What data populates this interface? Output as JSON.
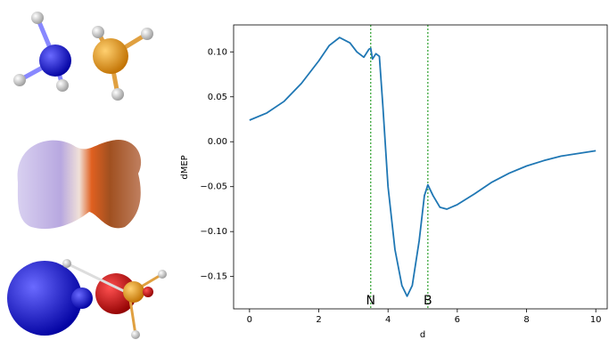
{
  "chart_data": {
    "type": "line",
    "x": [
      0,
      0.5,
      1.0,
      1.5,
      2.0,
      2.3,
      2.6,
      2.9,
      3.1,
      3.3,
      3.45,
      3.5,
      3.55,
      3.65,
      3.75,
      3.85,
      4.0,
      4.2,
      4.4,
      4.55,
      4.7,
      4.9,
      5.05,
      5.15,
      5.3,
      5.5,
      5.7,
      6.0,
      6.5,
      7.0,
      7.5,
      8.0,
      8.5,
      9.0,
      9.5,
      10
    ],
    "values": [
      0.024,
      0.032,
      0.045,
      0.065,
      0.09,
      0.107,
      0.116,
      0.11,
      0.1,
      0.094,
      0.103,
      0.104,
      0.092,
      0.098,
      0.095,
      0.04,
      -0.05,
      -0.12,
      -0.16,
      -0.172,
      -0.16,
      -0.11,
      -0.06,
      -0.048,
      -0.06,
      -0.073,
      -0.075,
      -0.07,
      -0.058,
      -0.045,
      -0.035,
      -0.027,
      -0.021,
      -0.016,
      -0.013,
      -0.01
    ],
    "color": "#1f77b4",
    "xlabel": "d",
    "ylabel": "dMEP",
    "xlim": [
      -0.46,
      10.33
    ],
    "ylim": [
      -0.186,
      0.13
    ],
    "xticks": [
      0,
      2,
      4,
      6,
      8,
      10
    ],
    "yticks": [
      {
        "value": -0.15,
        "label": "−0.15"
      },
      {
        "value": -0.1,
        "label": "−0.10"
      },
      {
        "value": -0.05,
        "label": "−0.05"
      },
      {
        "value": 0,
        "label": "0.00"
      },
      0.05,
      {
        "value": 0.1,
        "label": "0.10"
      }
    ],
    "vlines": [
      {
        "x": 3.5,
        "label": "N"
      },
      {
        "x": 5.15,
        "label": "B"
      }
    ],
    "vline_color": "#2ca02c"
  }
}
